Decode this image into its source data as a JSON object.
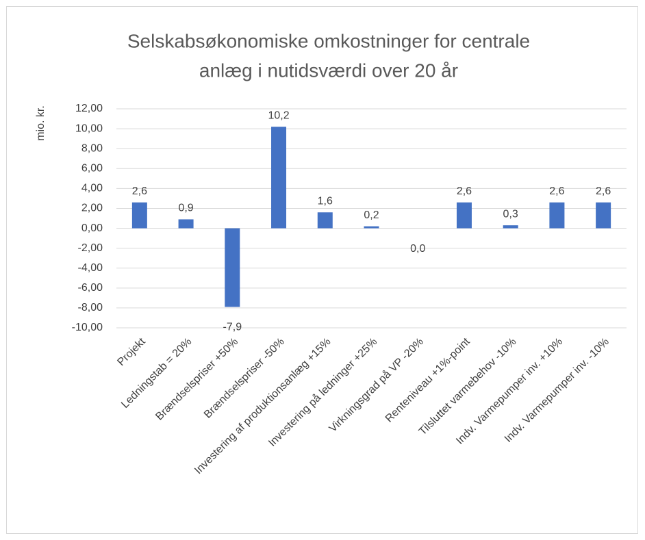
{
  "chart_data": {
    "type": "bar",
    "title": [
      "Selskabsøkonomiske omkostninger for centrale",
      "anlæg i  nutidsværdi over 20 år"
    ],
    "y_label": "mio. kr.",
    "categories": [
      "Projekt",
      "Ledningstab = 20%",
      "Brændselspriser +50%",
      "Brændselspriser -50%",
      "Investering af produktionsanlæg +15%",
      "Investering på ledninger +25%",
      "Virkningsgrad  på VP -20%",
      "Renteniveau +1%-point",
      "Tilsluttet varmebehov -10%",
      "Indv. Varmepumper inv. +10%",
      "Indv. Varmepumper inv. -10%"
    ],
    "values": [
      2.6,
      0.9,
      -7.9,
      10.2,
      1.6,
      0.2,
      0.0,
      2.6,
      0.3,
      2.6,
      2.6
    ],
    "value_labels": [
      "2,6",
      "0,9",
      "-7,9",
      "10,2",
      "1,6",
      "0,2",
      "0,0",
      "2,6",
      "0,3",
      "2,6",
      "2,6"
    ],
    "color": "#4472c4",
    "ylim": [
      -10,
      12
    ],
    "yticks": [
      {
        "value": -10,
        "label": "-10,00"
      },
      {
        "value": -8,
        "label": "-8,00"
      },
      {
        "value": -6,
        "label": "-6,00"
      },
      {
        "value": -4,
        "label": "-4,00"
      },
      {
        "value": -2,
        "label": "-2,00"
      },
      {
        "value": 0,
        "label": "0,00"
      },
      {
        "value": 2,
        "label": "2,00"
      },
      {
        "value": 4,
        "label": "4,00"
      },
      {
        "value": 6,
        "label": "6,00"
      },
      {
        "value": 8,
        "label": "8,00"
      },
      {
        "value": 10,
        "label": "10,00"
      },
      {
        "value": 12,
        "label": "12,00"
      }
    ],
    "grid": true
  }
}
